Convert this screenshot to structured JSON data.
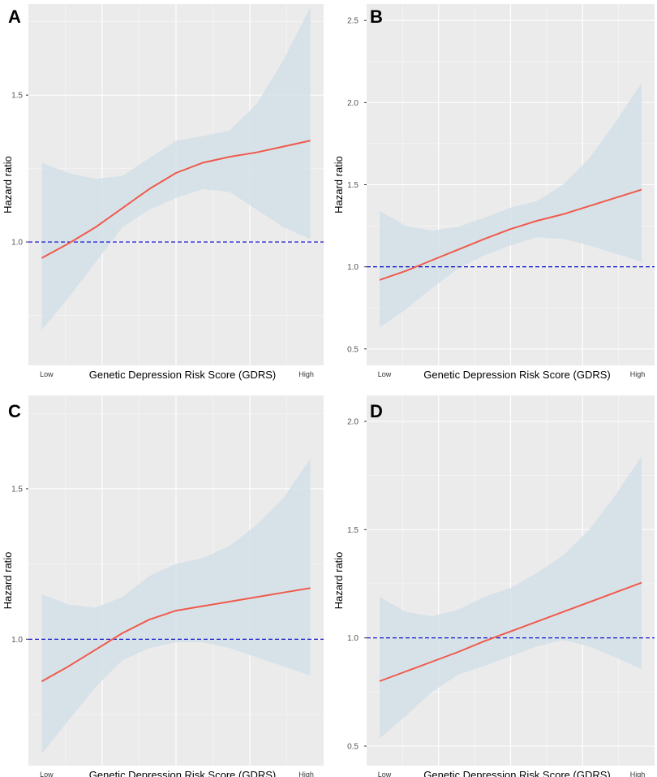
{
  "chart_data": [
    {
      "panel": "A",
      "type": "line",
      "xlabel": "Genetic Depression Risk Score (GDRS)",
      "ylabel": "Hazard ratio",
      "x_low_label": "Low",
      "x_high_label": "High",
      "ylim": [
        0.58,
        1.81
      ],
      "yticks": [
        1.0,
        1.5
      ],
      "ytick_labels": [
        "1.0",
        "1.5"
      ],
      "reference_line": 1.0,
      "x": [
        0.0,
        0.1,
        0.2,
        0.3,
        0.4,
        0.5,
        0.6,
        0.7,
        0.8,
        0.9,
        1.0
      ],
      "hr": [
        0.945,
        0.995,
        1.05,
        1.115,
        1.18,
        1.235,
        1.27,
        1.29,
        1.305,
        1.325,
        1.345
      ],
      "ci_lower": [
        0.7,
        0.81,
        0.93,
        1.05,
        1.11,
        1.15,
        1.18,
        1.17,
        1.11,
        1.05,
        1.01
      ],
      "ci_upper": [
        1.27,
        1.235,
        1.215,
        1.225,
        1.285,
        1.345,
        1.36,
        1.38,
        1.47,
        1.62,
        1.8
      ]
    },
    {
      "panel": "B",
      "type": "line",
      "xlabel": "Genetic Depression Risk Score (GDRS)",
      "ylabel": "Hazard ratio",
      "x_low_label": "Low",
      "x_high_label": "High",
      "ylim": [
        0.4,
        2.6
      ],
      "yticks": [
        0.5,
        1.0,
        1.5,
        2.0,
        2.5
      ],
      "ytick_labels": [
        "0.5",
        "1.0",
        "1.5",
        "2.0",
        "2.5"
      ],
      "reference_line": 1.0,
      "x": [
        0.0,
        0.1,
        0.2,
        0.3,
        0.4,
        0.5,
        0.6,
        0.7,
        0.8,
        0.9,
        1.0
      ],
      "hr": [
        0.92,
        0.975,
        1.04,
        1.105,
        1.17,
        1.23,
        1.28,
        1.32,
        1.37,
        1.42,
        1.47
      ],
      "ci_lower": [
        0.63,
        0.74,
        0.87,
        0.99,
        1.07,
        1.13,
        1.18,
        1.17,
        1.13,
        1.08,
        1.03
      ],
      "ci_upper": [
        1.34,
        1.25,
        1.22,
        1.245,
        1.3,
        1.36,
        1.4,
        1.5,
        1.66,
        1.88,
        2.12
      ]
    },
    {
      "panel": "C",
      "type": "line",
      "xlabel": "Genetic Depression Risk Score (GDRS)",
      "ylabel": "Hazard ratio",
      "x_low_label": "Low",
      "x_high_label": "High",
      "ylim": [
        0.58,
        1.81
      ],
      "yticks": [
        1.0,
        1.5
      ],
      "ytick_labels": [
        "1.0",
        "1.5"
      ],
      "reference_line": 1.0,
      "x": [
        0.0,
        0.1,
        0.2,
        0.3,
        0.4,
        0.5,
        0.6,
        0.7,
        0.8,
        0.9,
        1.0
      ],
      "hr": [
        0.86,
        0.91,
        0.965,
        1.02,
        1.065,
        1.095,
        1.11,
        1.125,
        1.14,
        1.155,
        1.17
      ],
      "ci_lower": [
        0.62,
        0.73,
        0.84,
        0.93,
        0.97,
        0.99,
        0.99,
        0.97,
        0.94,
        0.91,
        0.88
      ],
      "ci_upper": [
        1.15,
        1.115,
        1.105,
        1.14,
        1.21,
        1.25,
        1.27,
        1.31,
        1.38,
        1.47,
        1.6
      ]
    },
    {
      "panel": "D",
      "type": "line",
      "xlabel": "Genetic Depression Risk Score (GDRS)",
      "ylabel": "Hazard ratio",
      "x_low_label": "Low",
      "x_high_label": "High",
      "ylim": [
        0.41,
        2.12
      ],
      "yticks": [
        0.5,
        1.0,
        1.5,
        2.0
      ],
      "ytick_labels": [
        "0.5",
        "1.0",
        "1.5",
        "2.0"
      ],
      "reference_line": 1.0,
      "x": [
        0.0,
        0.1,
        0.2,
        0.3,
        0.4,
        0.5,
        0.6,
        0.7,
        0.8,
        0.9,
        1.0
      ],
      "hr": [
        0.8,
        0.845,
        0.89,
        0.935,
        0.985,
        1.03,
        1.075,
        1.12,
        1.165,
        1.21,
        1.255
      ],
      "ci_lower": [
        0.535,
        0.64,
        0.75,
        0.83,
        0.87,
        0.915,
        0.96,
        0.99,
        0.96,
        0.91,
        0.855
      ],
      "ci_upper": [
        1.19,
        1.12,
        1.1,
        1.13,
        1.19,
        1.23,
        1.3,
        1.38,
        1.5,
        1.66,
        1.84
      ]
    }
  ]
}
